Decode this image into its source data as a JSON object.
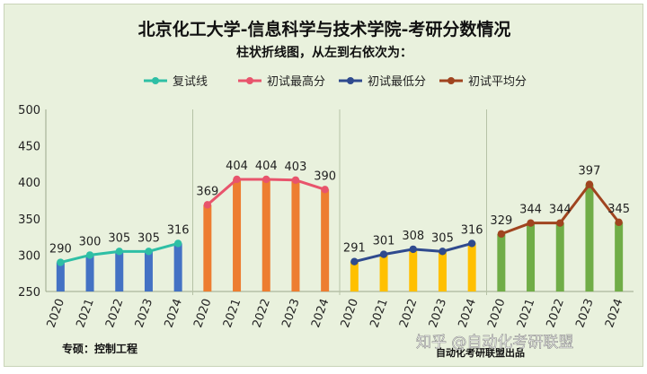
{
  "title": "北京化工大学-信息科学与技术学院-考研分数情况",
  "subtitle": "柱状折线图，从左到右依次为：",
  "footer_major": "专硕：控制工程",
  "footer_credit": "自动化考研联盟出品",
  "watermark": "知乎 @自动化考研联盟",
  "chart_data": {
    "type": "bar",
    "title": "北京化工大学-信息科学与技术学院-考研分数情况",
    "subtitle": "柱状折线图，从左到右依次为：",
    "ylim": [
      250,
      500
    ],
    "yticks": [
      "250",
      "300",
      "350",
      "400",
      "450",
      "500"
    ],
    "grid": false,
    "legend_position": "top",
    "categories": [
      "2020",
      "2021",
      "2022",
      "2023",
      "2024"
    ],
    "series": [
      {
        "name": "复试线",
        "values": [
          290,
          300,
          305,
          305,
          316
        ],
        "color": "#2ebfa5",
        "bar_color": "#4472c4"
      },
      {
        "name": "初试最高分",
        "values": [
          369,
          404,
          404,
          403,
          390
        ],
        "color": "#e8546c",
        "bar_color": "#ed7d31"
      },
      {
        "name": "初试最低分",
        "values": [
          291,
          301,
          308,
          305,
          316
        ],
        "color": "#2f4a8e",
        "bar_color": "#ffc000"
      },
      {
        "name": "初试平均分",
        "values": [
          329,
          344,
          344,
          397,
          345
        ],
        "color": "#a0441f",
        "bar_color": "#70ad47"
      }
    ]
  }
}
